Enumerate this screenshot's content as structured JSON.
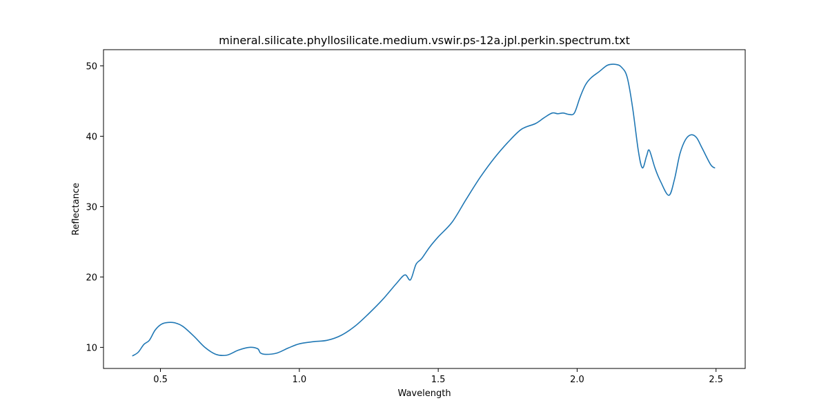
{
  "chart_data": {
    "type": "line",
    "title": "mineral.silicate.phyllosilicate.medium.vswir.ps-12a.jpl.perkin.spectrum.txt",
    "xlabel": "Wavelength",
    "ylabel": "Reflectance",
    "xlim": [
      0.295,
      2.605
    ],
    "ylim": [
      7.0,
      52.3
    ],
    "xticks": [
      0.5,
      1.0,
      1.5,
      2.0,
      2.5
    ],
    "xtick_labels": [
      "0.5",
      "1.0",
      "1.5",
      "2.0",
      "2.5"
    ],
    "yticks": [
      10,
      20,
      30,
      40,
      50
    ],
    "ytick_labels": [
      "10",
      "20",
      "30",
      "40",
      "50"
    ],
    "grid": false,
    "color": "#1f77b4",
    "series": [
      {
        "x": [
          0.4,
          0.42,
          0.44,
          0.46,
          0.48,
          0.5,
          0.52,
          0.55,
          0.58,
          0.62,
          0.66,
          0.7,
          0.74,
          0.78,
          0.82,
          0.85,
          0.86,
          0.88,
          0.92,
          0.96,
          1.0,
          1.05,
          1.1,
          1.15,
          1.2,
          1.25,
          1.3,
          1.35,
          1.38,
          1.4,
          1.42,
          1.44,
          1.47,
          1.5,
          1.55,
          1.6,
          1.65,
          1.7,
          1.75,
          1.8,
          1.85,
          1.88,
          1.91,
          1.93,
          1.95,
          1.97,
          1.99,
          2.01,
          2.03,
          2.05,
          2.08,
          2.11,
          2.14,
          2.16,
          2.18,
          2.2,
          2.22,
          2.235,
          2.25,
          2.26,
          2.28,
          2.3,
          2.33,
          2.35,
          2.37,
          2.39,
          2.41,
          2.43,
          2.45,
          2.48,
          2.495
        ],
        "y": [
          8.8,
          9.3,
          10.4,
          11.0,
          12.4,
          13.2,
          13.5,
          13.5,
          13.0,
          11.6,
          10.0,
          9.0,
          8.9,
          9.6,
          10.0,
          9.8,
          9.2,
          9.0,
          9.2,
          9.9,
          10.5,
          10.8,
          11.0,
          11.7,
          13.0,
          14.8,
          16.8,
          19.1,
          20.3,
          19.6,
          21.8,
          22.6,
          24.3,
          25.7,
          27.8,
          31.0,
          34.1,
          36.8,
          39.1,
          41.0,
          41.8,
          42.6,
          43.3,
          43.2,
          43.3,
          43.1,
          43.3,
          45.5,
          47.3,
          48.3,
          49.2,
          50.1,
          50.2,
          49.8,
          48.4,
          44.0,
          38.0,
          35.5,
          37.2,
          38.0,
          35.5,
          33.6,
          31.6,
          33.8,
          37.5,
          39.5,
          40.2,
          39.8,
          38.3,
          36.0,
          35.5
        ]
      }
    ]
  }
}
